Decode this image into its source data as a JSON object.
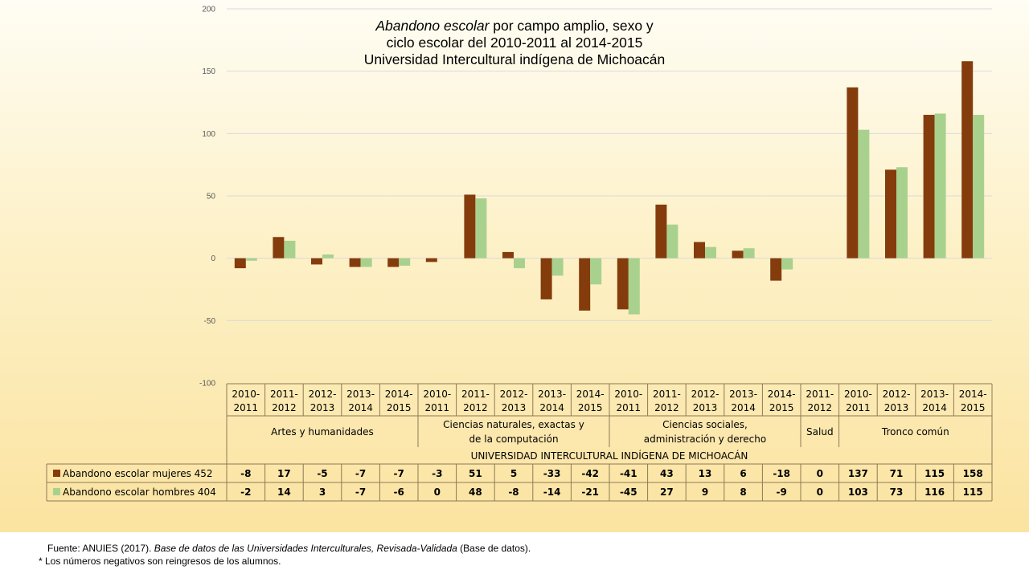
{
  "title": {
    "line1_italic": "Abandono escolar",
    "line1_rest": " por campo amplio, sexo y",
    "line2": "ciclo escolar del 2010-2011 al 2014-2015",
    "line3": "Universidad Intercultural indígena de Michoacán"
  },
  "colors": {
    "mujeres": "#843c0c",
    "hombres": "#a9d18e"
  },
  "chart_data": {
    "type": "bar",
    "ylim": [
      -100,
      200
    ],
    "yticks": [
      "200",
      "150",
      "100",
      "50",
      "0",
      "-50",
      "-100"
    ],
    "grid": true,
    "years": [
      "2010-2011",
      "2011-2012",
      "2012-2013",
      "2013-2014",
      "2014-2015",
      "2010-2011",
      "2011-2012",
      "2012-2013",
      "2013-2014",
      "2014-2015",
      "2010-2011",
      "2011-2012",
      "2012-2013",
      "2013-2014",
      "2014-2015",
      "2011-2012",
      "2010-2011",
      "2012-2013",
      "2013-2014",
      "2014-2015"
    ],
    "groups": [
      {
        "lines": [
          "Artes y humanidades"
        ],
        "count": 5
      },
      {
        "lines": [
          "Ciencias naturales, exactas y",
          "de la computación"
        ],
        "count": 5
      },
      {
        "lines": [
          "Ciencias sociales,",
          "administración y derecho"
        ],
        "count": 5
      },
      {
        "lines": [
          "Salud"
        ],
        "count": 1
      },
      {
        "lines": [
          "Tronco común"
        ],
        "count": 4
      }
    ],
    "university": "UNIVERSIDAD INTERCULTURAL INDÍGENA DE MICHOACÁN",
    "series": [
      {
        "name": "Abandono escolar mujeres",
        "total": "452",
        "values": [
          -8,
          17,
          -5,
          -7,
          -7,
          -3,
          51,
          5,
          -33,
          -42,
          -41,
          43,
          13,
          6,
          -18,
          0,
          137,
          71,
          115,
          158
        ]
      },
      {
        "name": "Abandono escolar hombres",
        "total": "404",
        "values": [
          -2,
          14,
          3,
          -7,
          -6,
          0,
          48,
          -8,
          -14,
          -21,
          -45,
          27,
          9,
          8,
          -9,
          0,
          103,
          73,
          116,
          115
        ]
      }
    ]
  },
  "footnotes": {
    "source_prefix": "Fuente: ANUIES  (2017). ",
    "source_italic": "Base de datos de las Universidades  Interculturales, Revisada-Validada",
    "source_suffix": "  (Base de datos).",
    "note": "* Los números negativos  son reingresos  de los alumnos."
  }
}
